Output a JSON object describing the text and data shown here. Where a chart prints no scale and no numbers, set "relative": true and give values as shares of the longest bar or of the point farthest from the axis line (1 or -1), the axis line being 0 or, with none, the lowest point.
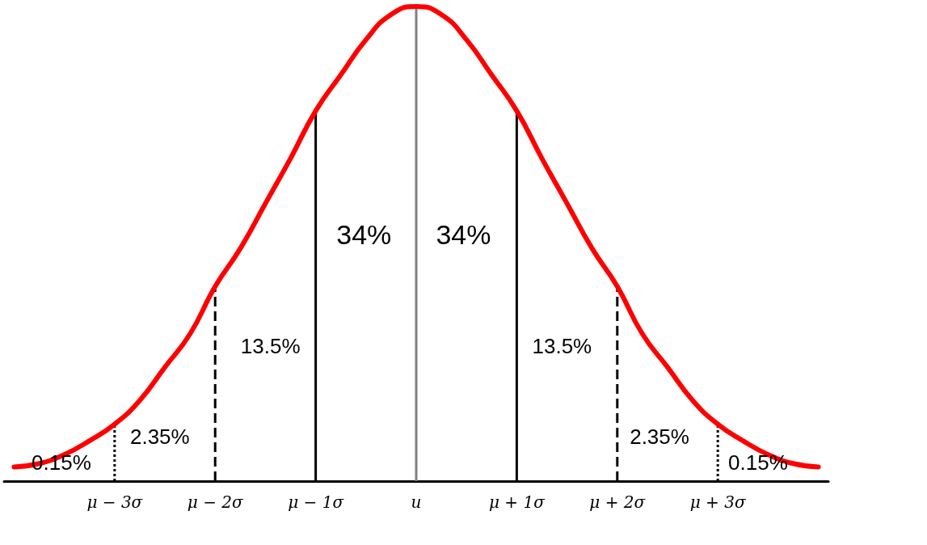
{
  "chart_data": {
    "type": "line",
    "relative": true,
    "marker": "none",
    "grid": false,
    "x": [
      -4,
      -3.75,
      -3.5,
      -3.25,
      -3,
      -2.75,
      -2.5,
      -2.25,
      -2,
      -1.75,
      -1.5,
      -1.25,
      -1,
      -0.75,
      -0.5,
      -0.25,
      0,
      0.25,
      0.5,
      0.75,
      1,
      1.25,
      1.5,
      1.75,
      2,
      2.25,
      2.5,
      2.75,
      3,
      3.25,
      3.5,
      3.75,
      4
    ],
    "series": [
      {
        "color": "#ff0000",
        "values": [
          0.03,
          0.037,
          0.056,
          0.085,
          0.12,
          0.17,
          0.24,
          0.31,
          0.41,
          0.49,
          0.585,
          0.68,
          0.78,
          0.856,
          0.93,
          0.983,
          1.0,
          0.983,
          0.93,
          0.856,
          0.78,
          0.68,
          0.585,
          0.49,
          0.41,
          0.31,
          0.24,
          0.17,
          0.12,
          0.085,
          0.056,
          0.037,
          0.03
        ]
      }
    ],
    "xlim": [
      -4.1,
      4.1
    ],
    "xticks": [
      {
        "value": -3,
        "label": "μ − 3σ"
      },
      {
        "value": -2,
        "label": "μ − 2σ"
      },
      {
        "value": -1,
        "label": "μ − 1σ"
      },
      {
        "value": 0,
        "label": "u"
      },
      {
        "value": 1,
        "label": "μ + 1σ"
      },
      {
        "value": 2,
        "label": "μ + 2σ"
      },
      {
        "value": 3,
        "label": "μ + 3σ"
      }
    ],
    "ref_lines": [
      {
        "axis": "x",
        "value": -3,
        "color": "#000000",
        "line_style": "dotted"
      },
      {
        "axis": "x",
        "value": -2,
        "color": "#000000",
        "line_style": "dashed"
      },
      {
        "axis": "x",
        "value": -1,
        "color": "#000000",
        "line_style": "solid"
      },
      {
        "axis": "x",
        "value": 0,
        "color": "#808080",
        "line_style": "solid"
      },
      {
        "axis": "x",
        "value": 1,
        "color": "#000000",
        "line_style": "solid"
      },
      {
        "axis": "x",
        "value": 2,
        "color": "#000000",
        "line_style": "dashed"
      },
      {
        "axis": "x",
        "value": 3,
        "color": "#000000",
        "line_style": "dotted"
      }
    ],
    "annotations": [
      "0.15%",
      "2.35%",
      "13.5%",
      "34%",
      "34%",
      "13.5%",
      "2.35%",
      "0.15%"
    ]
  }
}
